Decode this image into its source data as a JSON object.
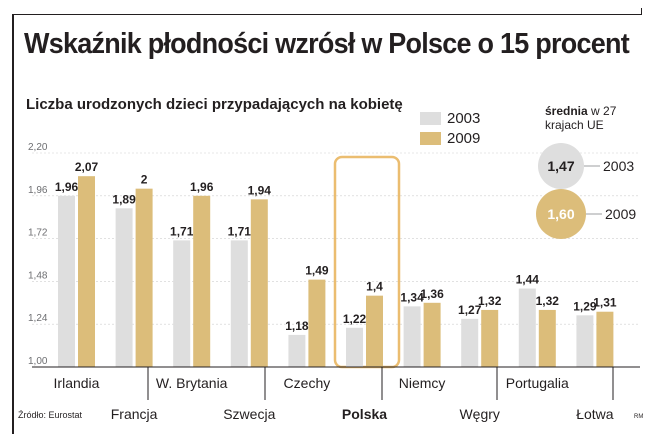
{
  "title": "Wskaźnik płodności wzrósł w Polsce o 15 procent",
  "subtitle": "Liczba urodzonych dzieci przypadających na kobietę",
  "source": "Źródło: Eurostat",
  "credit": "RM",
  "average": {
    "label_bold": "średnia",
    "label_rest_1": " w 27",
    "label_line_2": "krajach UE",
    "items": [
      {
        "year": "2003",
        "value": 1.47,
        "label": "1,47"
      },
      {
        "year": "2009",
        "value": 1.6,
        "label": "1,60"
      }
    ]
  },
  "colors": {
    "y2003": "#dedede",
    "y2009": "#dcbd7a",
    "highlight": "#ebbd70",
    "text": "#231f20"
  },
  "chart_data": {
    "type": "bar",
    "ylim": [
      1.0,
      2.2
    ],
    "yticks": [
      {
        "value": 2.2,
        "label": "2,20"
      },
      {
        "value": 1.96,
        "label": "1,96"
      },
      {
        "value": 1.72,
        "label": "1,72"
      },
      {
        "value": 1.48,
        "label": "1,48"
      },
      {
        "value": 1.24,
        "label": "1,24"
      },
      {
        "value": 1.0,
        "label": "1,00"
      }
    ],
    "categories": [
      "Irlandia",
      "Francja",
      "W. Brytania",
      "Szwecja",
      "Czechy",
      "Polska",
      "Niemcy",
      "Węgry",
      "Portugalia",
      "Łotwa"
    ],
    "highlight": "Polska",
    "series": [
      {
        "name": "2003",
        "values": [
          1.96,
          1.89,
          1.71,
          1.71,
          1.18,
          1.22,
          1.34,
          1.27,
          1.44,
          1.29
        ],
        "labels": [
          "1,96",
          "1,89",
          "1,71",
          "1,71",
          "1,18",
          "1,22",
          "1,34",
          "1,27",
          "1,44",
          "1,29"
        ]
      },
      {
        "name": "2009",
        "values": [
          2.07,
          2.0,
          1.96,
          1.94,
          1.49,
          1.4,
          1.36,
          1.32,
          1.32,
          1.31
        ],
        "labels": [
          "2,07",
          "2",
          "1,96",
          "1,94",
          "1,49",
          "1,4",
          "1,36",
          "1,32",
          "1,32",
          "1,31"
        ]
      }
    ]
  }
}
